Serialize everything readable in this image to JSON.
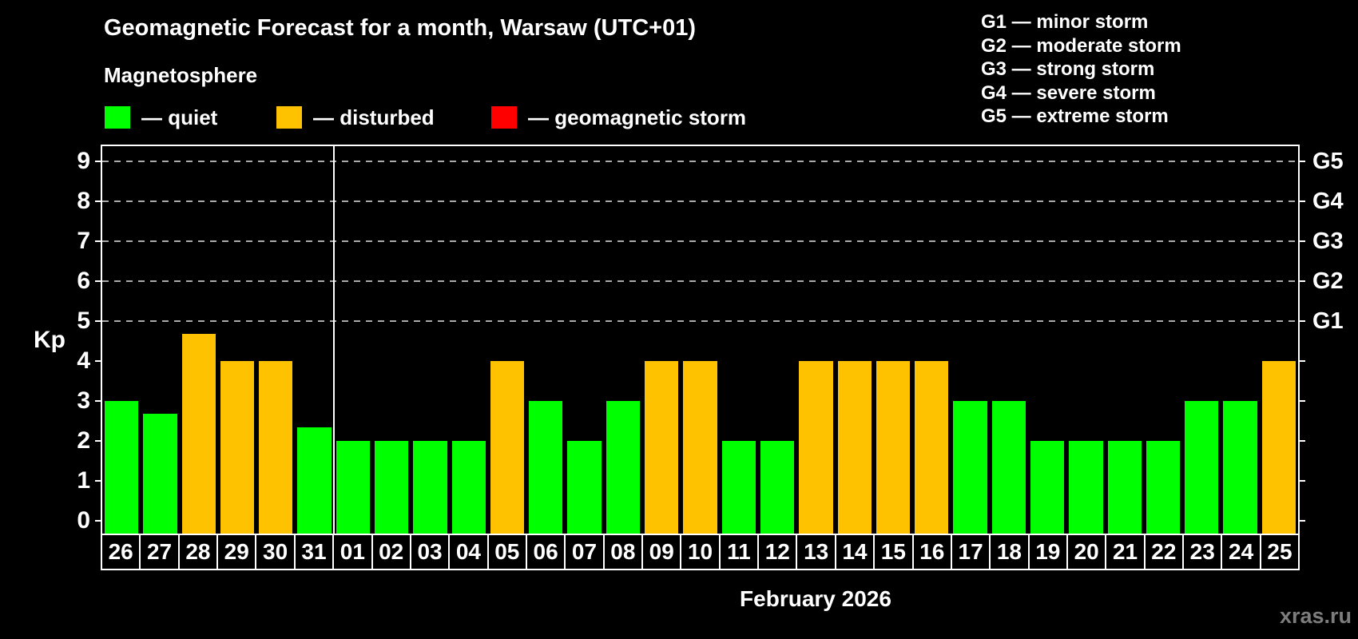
{
  "header": {
    "title": "Geomagnetic Forecast for a month, Warsaw (UTC+01)",
    "subtitle": "Magnetosphere",
    "legend": [
      {
        "name": "quiet",
        "label": "— quiet",
        "color": "#00ff00"
      },
      {
        "name": "disturbed",
        "label": "— disturbed",
        "color": "#ffc200"
      },
      {
        "name": "storm",
        "label": "— geomagnetic storm",
        "color": "#ff0000"
      }
    ],
    "storm_scale": [
      "G1 — minor storm",
      "G2 — moderate storm",
      "G3 — strong storm",
      "G4 — severe storm",
      "G5 — extreme storm"
    ]
  },
  "chart_data": {
    "type": "bar",
    "title": "Geomagnetic Forecast for a month, Warsaw (UTC+01)",
    "ylabel": "Kp",
    "xlabel": "February 2026",
    "ylim": [
      -0.33,
      9.38
    ],
    "yticks": [
      0,
      1,
      2,
      3,
      4,
      5,
      6,
      7,
      8,
      9
    ],
    "gridlines_at": [
      5,
      6,
      7,
      8,
      9
    ],
    "gridline_color": "#aaaaaa",
    "legend_position": "top",
    "right_axis_labels": [
      {
        "label": "G1",
        "kp": 5
      },
      {
        "label": "G2",
        "kp": 6
      },
      {
        "label": "G3",
        "kp": 7
      },
      {
        "label": "G4",
        "kp": 8
      },
      {
        "label": "G5",
        "kp": 9
      }
    ],
    "month_separator_after_index": 5,
    "categories": [
      "26",
      "27",
      "28",
      "29",
      "30",
      "31",
      "01",
      "02",
      "03",
      "04",
      "05",
      "06",
      "07",
      "08",
      "09",
      "10",
      "11",
      "12",
      "13",
      "14",
      "15",
      "16",
      "17",
      "18",
      "19",
      "20",
      "21",
      "22",
      "23",
      "24",
      "25"
    ],
    "values": [
      3,
      2.67,
      4.67,
      4,
      4,
      2.33,
      2,
      2,
      2,
      2,
      4,
      3,
      2,
      3,
      4,
      4,
      2,
      2,
      4,
      4,
      4,
      4,
      3,
      3,
      2,
      2,
      2,
      2,
      3,
      3,
      4
    ],
    "statuses": [
      "quiet",
      "quiet",
      "disturbed",
      "disturbed",
      "disturbed",
      "quiet",
      "quiet",
      "quiet",
      "quiet",
      "quiet",
      "disturbed",
      "quiet",
      "quiet",
      "quiet",
      "disturbed",
      "disturbed",
      "quiet",
      "quiet",
      "disturbed",
      "disturbed",
      "disturbed",
      "disturbed",
      "quiet",
      "quiet",
      "quiet",
      "quiet",
      "quiet",
      "quiet",
      "quiet",
      "quiet",
      "disturbed"
    ],
    "colors": {
      "quiet": "#00ff00",
      "disturbed": "#ffc200",
      "storm": "#ff0000"
    }
  },
  "footer": {
    "month_label": "February 2026",
    "watermark": "xras.ru"
  }
}
